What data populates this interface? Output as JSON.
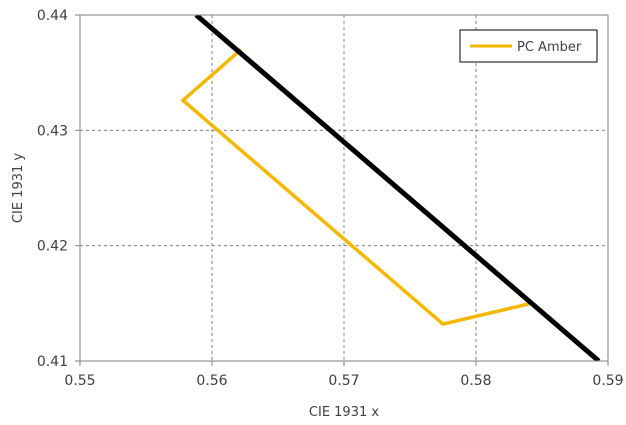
{
  "chart_data": {
    "type": "line",
    "xlabel": "CIE 1931 x",
    "ylabel": "CIE 1931 y",
    "xlim": [
      0.55,
      0.59
    ],
    "ylim": [
      0.41,
      0.44
    ],
    "x_ticks": [
      "0.55",
      "0.56",
      "0.57",
      "0.58",
      "0.59"
    ],
    "y_ticks": [
      "0.41",
      "0.42",
      "0.43",
      "0.44"
    ],
    "grid": true,
    "legend_position": "top-right",
    "series": [
      {
        "name": "PC Amber",
        "color": "#F5B800",
        "points": [
          [
            0.5622,
            0.437
          ],
          [
            0.5578,
            0.4326
          ],
          [
            0.5775,
            0.4132
          ],
          [
            0.5842,
            0.415
          ]
        ]
      },
      {
        "color": "#000000",
        "points": [
          [
            0.5588,
            0.44
          ],
          [
            0.5893,
            0.41
          ]
        ]
      }
    ]
  }
}
